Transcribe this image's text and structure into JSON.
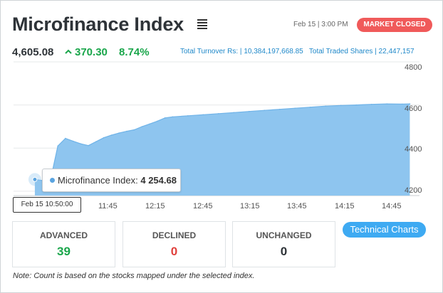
{
  "header": {
    "title": "Microfinance Index",
    "datetime": "Feb 15 | 3:00 PM",
    "market_status": "MARKET CLOSED"
  },
  "summary": {
    "price": "4,605.08",
    "change": "370.30",
    "change_pct": "8.74%",
    "turnover_label": "Total Turnover Rs: |",
    "turnover_value": "10,384,197,668.85",
    "shares_label": "Total Traded Shares |",
    "shares_value": "22,447,157"
  },
  "tooltip": {
    "label": "Microfinance Index:",
    "value": "4 254.68",
    "time": "Feb 15 10:50:00"
  },
  "chart_data": {
    "type": "area",
    "x": [
      "10:50",
      "11:00",
      "11:05",
      "11:10",
      "11:15",
      "11:20",
      "11:25",
      "11:30",
      "11:35",
      "11:40",
      "11:45",
      "11:50",
      "11:55",
      "12:00",
      "12:05",
      "12:10",
      "12:15",
      "12:20",
      "12:30",
      "12:40",
      "12:50",
      "13:00",
      "13:10",
      "13:20",
      "13:30",
      "13:40",
      "13:50",
      "14:00",
      "14:10",
      "14:20",
      "14:30",
      "14:40",
      "14:50",
      "14:55"
    ],
    "values": [
      4254.68,
      4245,
      4410,
      4445,
      4432,
      4420,
      4412,
      4430,
      4448,
      4460,
      4470,
      4478,
      4485,
      4500,
      4512,
      4525,
      4540,
      4545,
      4550,
      4555,
      4560,
      4565,
      4570,
      4575,
      4580,
      4585,
      4590,
      4595,
      4598,
      4600,
      4603,
      4605,
      4604,
      4605.08
    ],
    "xticks": [
      "11:45",
      "12:15",
      "12:45",
      "13:15",
      "13:45",
      "14:15",
      "14:45"
    ],
    "yticks": [
      "4800",
      "4600",
      "4400",
      "4200"
    ],
    "ylim": [
      4180,
      4800
    ],
    "grid": true,
    "color": "#8ec5ef"
  },
  "stats": {
    "advanced_label": "ADVANCED",
    "advanced_value": "39",
    "declined_label": "DECLINED",
    "declined_value": "0",
    "unchanged_label": "UNCHANGED",
    "unchanged_value": "0"
  },
  "actions": {
    "tech_charts": "Technical Charts"
  },
  "note": "Note: Count is based on the stocks mapped under the selected index.",
  "colors": {
    "up": "#1aa64b",
    "down": "#e0403c",
    "badge": "#f05a5a",
    "link": "#1f88c9",
    "button": "#3eaaf2"
  }
}
